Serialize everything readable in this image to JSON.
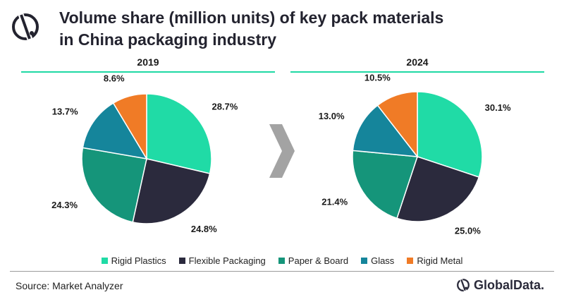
{
  "header": {
    "title_line1": "Volume share (million units) of key pack materials",
    "title_line2": "in China packaging industry"
  },
  "colors": {
    "accent": "#1fd9a4",
    "rigid_plastics": "#20dba6",
    "flexible_packaging": "#2b2a3d",
    "paper_board": "#15957a",
    "glass": "#15859b",
    "rigid_metal": "#f07b26",
    "arrow": "#a3a3a3"
  },
  "chart_data": [
    {
      "type": "pie",
      "title": "2019",
      "categories": [
        "Rigid Plastics",
        "Flexible Packaging",
        "Paper & Board",
        "Glass",
        "Rigid Metal"
      ],
      "values": [
        28.7,
        24.8,
        24.3,
        13.7,
        8.6
      ],
      "labels": [
        "28.7%",
        "24.8%",
        "24.3%",
        "13.7%",
        "8.6%"
      ],
      "start": "12 o'clock, clockwise"
    },
    {
      "type": "pie",
      "title": "2024",
      "categories": [
        "Rigid Plastics",
        "Flexible Packaging",
        "Paper & Board",
        "Glass",
        "Rigid Metal"
      ],
      "values": [
        30.1,
        25.0,
        21.4,
        13.0,
        10.5
      ],
      "labels": [
        "30.1%",
        "25.0%",
        "21.4%",
        "13.0%",
        "10.5%"
      ],
      "start": "12 o'clock, clockwise"
    }
  ],
  "legend": {
    "position": "bottom-center",
    "items": [
      {
        "label": "Rigid Plastics",
        "color": "#20dba6"
      },
      {
        "label": "Flexible Packaging",
        "color": "#2b2a3d"
      },
      {
        "label": "Paper & Board",
        "color": "#15957a"
      },
      {
        "label": "Glass",
        "color": "#15859b"
      },
      {
        "label": "Rigid Metal",
        "color": "#f07b26"
      }
    ]
  },
  "footer": {
    "source": "Source: Market Analyzer",
    "brand": "GlobalData."
  }
}
